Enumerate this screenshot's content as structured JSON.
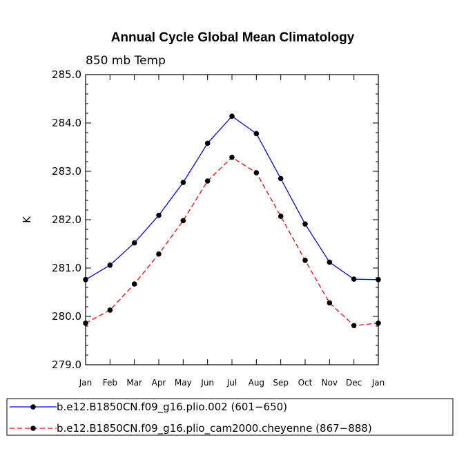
{
  "chart_data": {
    "type": "line",
    "title": "Annual Cycle Global Mean Climatology",
    "subtitle": "850 mb Temp",
    "xlabel": "",
    "ylabel": "K",
    "categories": [
      "Jan",
      "Feb",
      "Mar",
      "Apr",
      "May",
      "Jun",
      "Jul",
      "Aug",
      "Sep",
      "Oct",
      "Nov",
      "Dec",
      "Jan"
    ],
    "ylim": [
      279.0,
      285.0
    ],
    "yticks": [
      "279.0",
      "280.0",
      "281.0",
      "282.0",
      "283.0",
      "284.0",
      "285.0"
    ],
    "series": [
      {
        "name": "b.e12.B1850CN.f09_g16.plio.002 (601−650)",
        "color": "#0000ff",
        "dash": "solid",
        "values": [
          280.76,
          281.06,
          281.52,
          282.09,
          282.77,
          283.58,
          284.14,
          283.78,
          282.85,
          281.91,
          281.12,
          280.77,
          280.76
        ]
      },
      {
        "name": "b.e12.B1850CN.f09_g16.plio_cam2000.cheyenne (867−888)",
        "color": "#ff0000",
        "dash": "dashed",
        "values": [
          279.86,
          280.13,
          280.67,
          281.29,
          281.98,
          282.8,
          283.29,
          282.97,
          282.07,
          281.16,
          280.28,
          279.81,
          279.86
        ]
      }
    ]
  }
}
